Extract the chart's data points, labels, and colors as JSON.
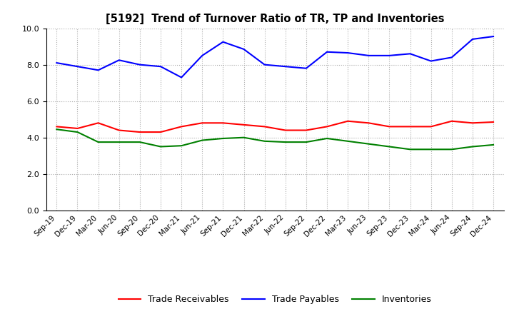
{
  "title": "[5192]  Trend of Turnover Ratio of TR, TP and Inventories",
  "x_labels": [
    "Sep-19",
    "Dec-19",
    "Mar-20",
    "Jun-20",
    "Sep-20",
    "Dec-20",
    "Mar-21",
    "Jun-21",
    "Sep-21",
    "Dec-21",
    "Mar-22",
    "Jun-22",
    "Sep-22",
    "Dec-22",
    "Mar-23",
    "Jun-23",
    "Sep-23",
    "Dec-23",
    "Mar-24",
    "Jun-24",
    "Sep-24",
    "Dec-24"
  ],
  "trade_receivables": [
    4.6,
    4.5,
    4.8,
    4.4,
    4.3,
    4.3,
    4.6,
    4.8,
    4.8,
    4.7,
    4.6,
    4.4,
    4.4,
    4.6,
    4.9,
    4.8,
    4.6,
    4.6,
    4.6,
    4.9,
    4.8,
    4.85
  ],
  "trade_payables": [
    8.1,
    7.9,
    7.7,
    8.25,
    8.0,
    7.9,
    7.3,
    8.5,
    9.25,
    8.85,
    8.0,
    7.9,
    7.8,
    8.7,
    8.65,
    8.5,
    8.5,
    8.6,
    8.2,
    8.4,
    9.4,
    9.55
  ],
  "inventories": [
    4.45,
    4.3,
    3.75,
    3.75,
    3.75,
    3.5,
    3.55,
    3.85,
    3.95,
    4.0,
    3.8,
    3.75,
    3.75,
    3.95,
    3.8,
    3.65,
    3.5,
    3.35,
    3.35,
    3.35,
    3.5,
    3.6
  ],
  "tr_color": "#ff0000",
  "tp_color": "#0000ff",
  "inv_color": "#008000",
  "ylim": [
    0.0,
    10.0
  ],
  "yticks": [
    0.0,
    2.0,
    4.0,
    6.0,
    8.0,
    10.0
  ],
  "bg_color": "#ffffff",
  "grid_color": "#aaaaaa",
  "legend_labels": [
    "Trade Receivables",
    "Trade Payables",
    "Inventories"
  ]
}
